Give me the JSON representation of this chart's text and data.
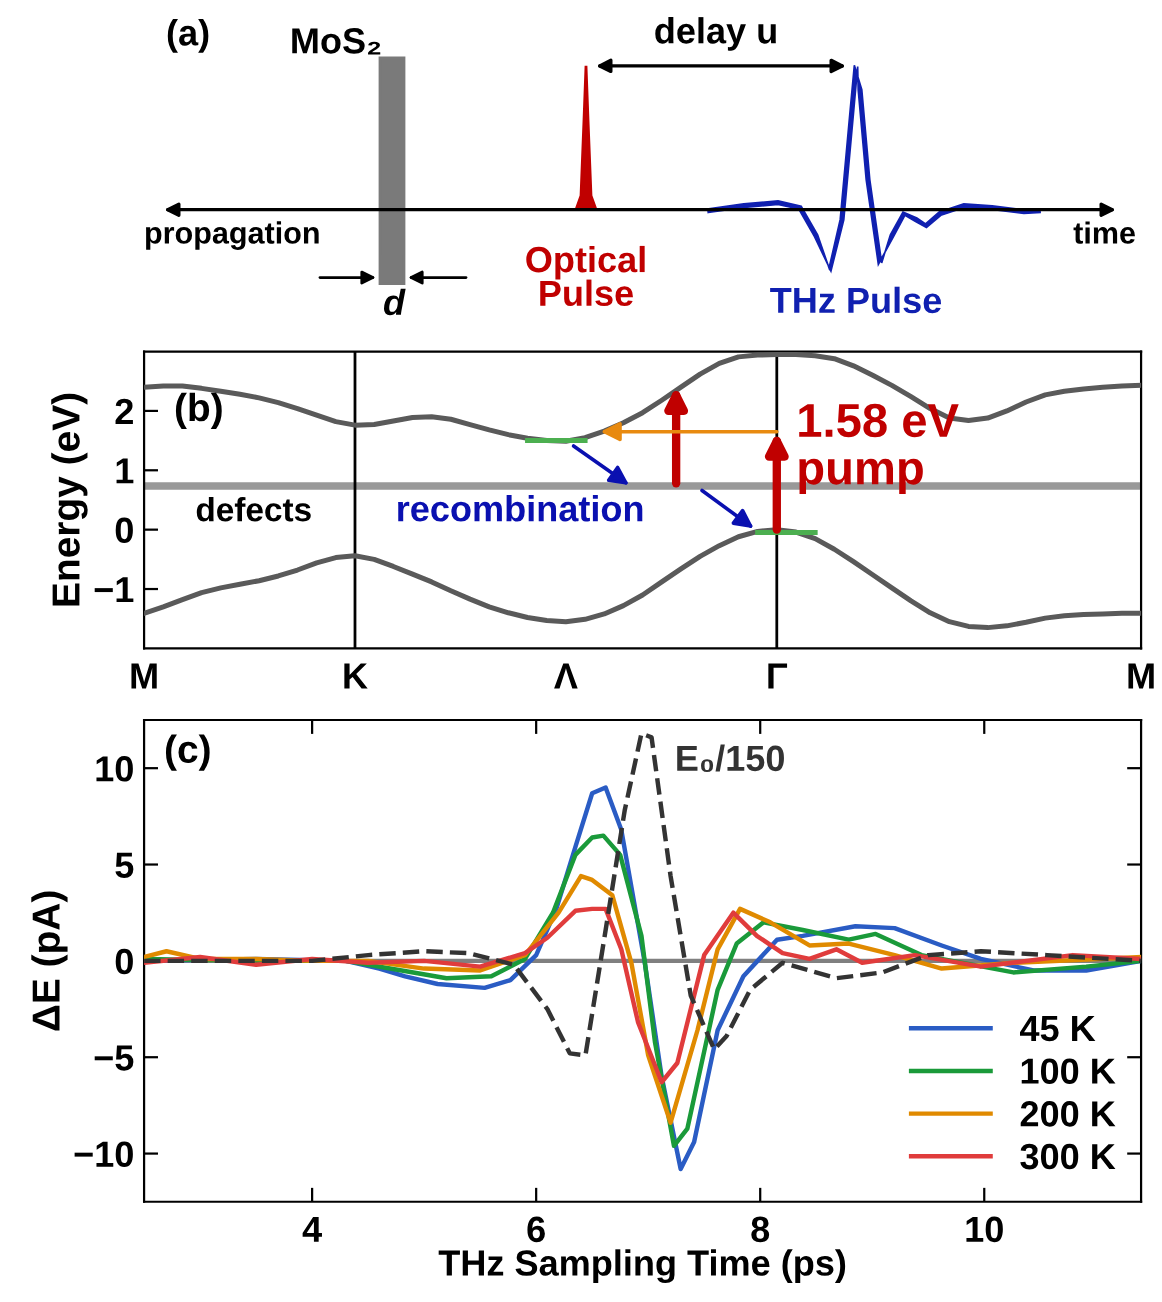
{
  "chart_data": [
    {
      "type": "other",
      "annotations": [
        "(a)",
        "MoS₂",
        "delay u",
        "propagation",
        "time",
        "d",
        "Optical\nPulse",
        "THz Pulse"
      ]
    },
    {
      "type": "line",
      "ylabel": "Energy (eV)",
      "annotations": [
        "(b)",
        {
          "text": "1.58 eV\npump",
          "x": "Γ",
          "y": 1.58
        },
        {
          "text": "recombination",
          "y": 0.75
        }
      ],
      "categories": [
        "M",
        null,
        null,
        null,
        null,
        null,
        null,
        null,
        null,
        null,
        null,
        "K",
        null,
        null,
        null,
        null,
        null,
        null,
        null,
        null,
        null,
        null,
        "Λ",
        null,
        null,
        null,
        null,
        null,
        null,
        null,
        null,
        null,
        null,
        "Γ",
        null,
        null,
        null,
        null,
        null,
        null,
        null,
        null,
        null,
        null,
        null,
        null,
        null,
        null,
        null,
        null,
        null,
        null,
        "M"
      ],
      "ylim": [
        -2,
        3
      ],
      "yticks": [
        -1,
        0,
        1,
        2
      ],
      "grid": false,
      "legend": false,
      "ref_lines": [
        {
          "axis": "x",
          "value": "K",
          "color": "#000000"
        },
        {
          "axis": "x",
          "value": "Γ",
          "color": "#000000"
        }
      ],
      "bands": [
        {
          "axis": "y",
          "from": 0.67,
          "to": 0.8,
          "label": "defects",
          "color": "#7f7f7f"
        }
      ],
      "series": [
        {
          "color": "#5a5a5a",
          "values": [
            2.4,
            2.42,
            2.42,
            2.38,
            2.33,
            2.28,
            2.22,
            2.14,
            2.04,
            1.93,
            1.82,
            1.76,
            1.77,
            1.83,
            1.89,
            1.9,
            1.86,
            1.77,
            1.68,
            1.6,
            1.54,
            1.5,
            1.49,
            1.55,
            1.66,
            1.8,
            1.97,
            2.18,
            2.4,
            2.62,
            2.8,
            2.91,
            2.94,
            2.95,
            2.95,
            2.93,
            2.88,
            2.76,
            2.6,
            2.43,
            2.24,
            2.04,
            1.88,
            1.84,
            1.88,
            2.0,
            2.15,
            2.27,
            2.33,
            2.37,
            2.4,
            2.42,
            2.43
          ]
        },
        {
          "color": "#5a5a5a",
          "values": [
            -1.41,
            -1.3,
            -1.18,
            -1.06,
            -0.98,
            -0.92,
            -0.86,
            -0.78,
            -0.68,
            -0.56,
            -0.47,
            -0.44,
            -0.5,
            -0.62,
            -0.75,
            -0.88,
            -1.03,
            -1.17,
            -1.3,
            -1.4,
            -1.48,
            -1.53,
            -1.55,
            -1.51,
            -1.42,
            -1.28,
            -1.1,
            -0.88,
            -0.66,
            -0.45,
            -0.27,
            -0.12,
            -0.03,
            0,
            -0.04,
            -0.15,
            -0.33,
            -0.54,
            -0.76,
            -0.98,
            -1.2,
            -1.4,
            -1.55,
            -1.63,
            -1.65,
            -1.62,
            -1.56,
            -1.49,
            -1.45,
            -1.43,
            -1.42,
            -1.41,
            -1.41
          ]
        },
        {
          "color": "#4caf50",
          "values": [
            null,
            null,
            null,
            null,
            null,
            null,
            null,
            null,
            null,
            null,
            null,
            null,
            null,
            null,
            null,
            null,
            null,
            null,
            null,
            null,
            1.5,
            1.5,
            1.5,
            1.5,
            null,
            null,
            null,
            null,
            null,
            null,
            null,
            null,
            null,
            null,
            null,
            null,
            null,
            null,
            null,
            null,
            null,
            null,
            null,
            null,
            null,
            null,
            null,
            null,
            null,
            null,
            null,
            null,
            null
          ]
        },
        {
          "color": "#4caf50",
          "values": [
            null,
            null,
            null,
            null,
            null,
            null,
            null,
            null,
            null,
            null,
            null,
            null,
            null,
            null,
            null,
            null,
            null,
            null,
            null,
            null,
            null,
            null,
            null,
            null,
            null,
            null,
            null,
            null,
            null,
            null,
            null,
            null,
            -0.05,
            -0.05,
            -0.05,
            -0.05,
            null,
            null,
            null,
            null,
            null,
            null,
            null,
            null,
            null,
            null,
            null,
            null,
            null,
            null,
            null,
            null,
            null
          ]
        }
      ]
    },
    {
      "type": "line",
      "xlabel": "THz Sampling Time (ps)",
      "ylabel": "ΔE (pA)",
      "annotations": [
        "(c)"
      ],
      "xlim": [
        2.5,
        11.4
      ],
      "xticks": [
        4,
        6,
        8,
        10
      ],
      "ylim": [
        -12.5,
        12.5
      ],
      "yticks": [
        -10,
        -5,
        0,
        5,
        10
      ],
      "grid": false,
      "legend": "bottom right",
      "ref_lines": [
        {
          "axis": "y",
          "value": 0,
          "color": "#808080"
        }
      ],
      "series": [
        {
          "name": "45 K",
          "color": "#2a5cc4",
          "x": [
            2.5,
            3.5,
            4.3,
            4.6,
            4.83,
            5.12,
            5.54,
            5.77,
            6.0,
            6.18,
            6.36,
            6.5,
            6.62,
            6.76,
            6.97,
            7.12,
            7.29,
            7.41,
            7.62,
            7.85,
            8.15,
            8.38,
            8.85,
            9.2,
            9.62,
            9.97,
            10.44,
            10.91,
            11.4
          ],
          "values": [
            0,
            0.1,
            0,
            -0.4,
            -0.8,
            -1.2,
            -1.4,
            -1,
            0.3,
            2.7,
            6.1,
            8.7,
            9.0,
            6.8,
            -0.1,
            -6,
            -10.8,
            -9.4,
            -3.6,
            -0.8,
            1.1,
            1.3,
            1.8,
            1.7,
            0.8,
            0.1,
            -0.5,
            -0.5,
            0
          ]
        },
        {
          "name": "100 K",
          "color": "#1a9a3a",
          "x": [
            2.5,
            3.5,
            4.3,
            4.8,
            5.2,
            5.6,
            5.9,
            6.15,
            6.35,
            6.5,
            6.6,
            6.75,
            6.94,
            7.06,
            7.23,
            7.35,
            7.62,
            7.79,
            8.03,
            8.38,
            8.79,
            9.03,
            9.44,
            10.26,
            10.91,
            11.4
          ],
          "values": [
            0.1,
            0,
            0,
            -0.5,
            -0.9,
            -0.8,
            0.1,
            2.5,
            5.5,
            6.4,
            6.5,
            5.5,
            1.3,
            -4.2,
            -9.6,
            -8.7,
            -1.5,
            0.9,
            2.0,
            1.6,
            1.1,
            1.4,
            0.3,
            -0.6,
            -0.3,
            0
          ]
        },
        {
          "name": "200 K",
          "color": "#e08a00",
          "x": [
            2.5,
            2.7,
            3.0,
            3.5,
            4.0,
            4.5,
            5.0,
            5.5,
            5.9,
            6.2,
            6.4,
            6.5,
            6.68,
            6.85,
            7.0,
            7.2,
            7.44,
            7.62,
            7.82,
            8.09,
            8.44,
            8.79,
            9.2,
            9.62,
            10.26,
            11.4
          ],
          "values": [
            0.2,
            0.5,
            0.1,
            0.1,
            0,
            0,
            -0.4,
            -0.5,
            0.3,
            2.5,
            4.4,
            4.2,
            3.4,
            -0.1,
            -4.9,
            -8.4,
            -3.6,
            0.6,
            2.7,
            2.0,
            0.8,
            0.9,
            0.3,
            -0.4,
            -0.1,
            0.2
          ]
        },
        {
          "name": "300 K",
          "color": "#e03c3c",
          "x": [
            2.5,
            3.0,
            3.5,
            4.0,
            4.5,
            5.0,
            5.5,
            5.9,
            6.1,
            6.35,
            6.5,
            6.62,
            6.76,
            6.91,
            7.12,
            7.26,
            7.5,
            7.76,
            7.97,
            8.2,
            8.44,
            8.68,
            8.91,
            9.38,
            9.97,
            10.79,
            11.4
          ],
          "values": [
            -0.1,
            0.2,
            -0.2,
            0.1,
            -0.1,
            0,
            -0.3,
            0.4,
            1.2,
            2.6,
            2.7,
            2.7,
            0.6,
            -3.2,
            -6.3,
            -5.3,
            0.3,
            2.5,
            1.3,
            0.4,
            0.1,
            0.6,
            -0.1,
            0.3,
            -0.3,
            0.3,
            0.1
          ]
        },
        {
          "name": "E₀/150",
          "color": "#333333",
          "line_style": "dashed",
          "x": [
            2.5,
            4.0,
            4.5,
            5.0,
            5.4,
            5.8,
            6.1,
            6.3,
            6.44,
            6.62,
            6.79,
            6.94,
            7.03,
            7.2,
            7.38,
            7.59,
            7.7,
            7.91,
            8.2,
            8.68,
            9.09,
            9.5,
            9.97,
            10.56,
            11.4
          ],
          "values": [
            0,
            0,
            0.3,
            0.5,
            0.4,
            -0.2,
            -2.5,
            -4.8,
            -4.9,
            1.6,
            7.8,
            11.8,
            11.6,
            4.4,
            -1.8,
            -4.6,
            -3.9,
            -1.5,
            -0.1,
            -0.9,
            -0.6,
            0.3,
            0.5,
            0.3,
            0
          ]
        }
      ]
    }
  ]
}
